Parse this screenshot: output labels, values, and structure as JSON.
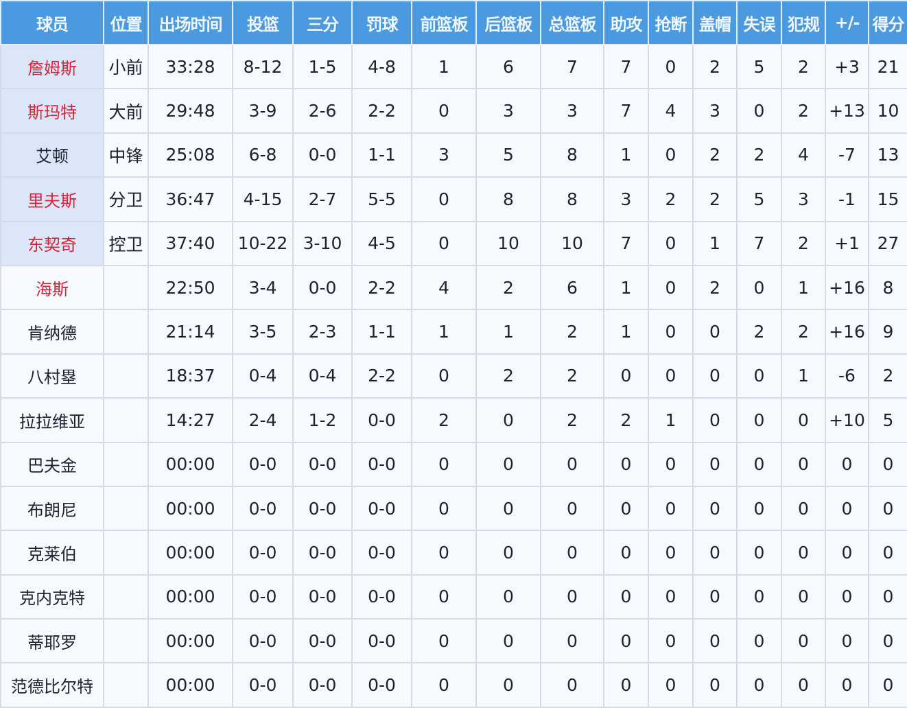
{
  "colors": {
    "header_bg": "#4b9ae0",
    "starter_bg": "#dbe7f8",
    "highlight_name": "#d7233a"
  },
  "headers": [
    "球员",
    "位置",
    "出场时间",
    "投篮",
    "三分",
    "罚球",
    "前篮板",
    "后篮板",
    "总篮板",
    "助攻",
    "抢断",
    "盖帽",
    "失误",
    "犯规",
    "+/-",
    "得分"
  ],
  "rows": [
    {
      "starter": true,
      "highlight": true,
      "cells": [
        "詹姆斯",
        "小前",
        "33:28",
        "8-12",
        "1-5",
        "4-8",
        "1",
        "6",
        "7",
        "7",
        "0",
        "2",
        "5",
        "2",
        "+3",
        "21"
      ]
    },
    {
      "starter": true,
      "highlight": true,
      "cells": [
        "斯玛特",
        "大前",
        "29:48",
        "3-9",
        "2-6",
        "2-2",
        "0",
        "3",
        "3",
        "7",
        "4",
        "3",
        "0",
        "2",
        "+13",
        "10"
      ]
    },
    {
      "starter": true,
      "highlight": false,
      "cells": [
        "艾顿",
        "中锋",
        "25:08",
        "6-8",
        "0-0",
        "1-1",
        "3",
        "5",
        "8",
        "1",
        "0",
        "2",
        "2",
        "4",
        "-7",
        "13"
      ]
    },
    {
      "starter": true,
      "highlight": true,
      "cells": [
        "里夫斯",
        "分卫",
        "36:47",
        "4-15",
        "2-7",
        "5-5",
        "0",
        "8",
        "8",
        "3",
        "2",
        "2",
        "5",
        "3",
        "-1",
        "15"
      ]
    },
    {
      "starter": true,
      "highlight": true,
      "cells": [
        "东契奇",
        "控卫",
        "37:40",
        "10-22",
        "3-10",
        "4-5",
        "0",
        "10",
        "10",
        "7",
        "0",
        "1",
        "7",
        "2",
        "+1",
        "27"
      ]
    },
    {
      "starter": false,
      "highlight": true,
      "cells": [
        "海斯",
        "",
        "22:50",
        "3-4",
        "0-0",
        "2-2",
        "4",
        "2",
        "6",
        "1",
        "0",
        "2",
        "0",
        "1",
        "+16",
        "8"
      ]
    },
    {
      "starter": false,
      "highlight": false,
      "cells": [
        "肯纳德",
        "",
        "21:14",
        "3-5",
        "2-3",
        "1-1",
        "1",
        "1",
        "2",
        "1",
        "0",
        "0",
        "2",
        "2",
        "+16",
        "9"
      ]
    },
    {
      "starter": false,
      "highlight": false,
      "cells": [
        "八村塁",
        "",
        "18:37",
        "0-4",
        "0-4",
        "2-2",
        "0",
        "2",
        "2",
        "0",
        "0",
        "0",
        "0",
        "1",
        "-6",
        "2"
      ]
    },
    {
      "starter": false,
      "highlight": false,
      "cells": [
        "拉拉维亚",
        "",
        "14:27",
        "2-4",
        "1-2",
        "0-0",
        "2",
        "0",
        "2",
        "2",
        "1",
        "0",
        "0",
        "0",
        "+10",
        "5"
      ]
    },
    {
      "starter": false,
      "highlight": false,
      "cells": [
        "巴夫金",
        "",
        "00:00",
        "0-0",
        "0-0",
        "0-0",
        "0",
        "0",
        "0",
        "0",
        "0",
        "0",
        "0",
        "0",
        "0",
        "0"
      ]
    },
    {
      "starter": false,
      "highlight": false,
      "cells": [
        "布朗尼",
        "",
        "00:00",
        "0-0",
        "0-0",
        "0-0",
        "0",
        "0",
        "0",
        "0",
        "0",
        "0",
        "0",
        "0",
        "0",
        "0"
      ]
    },
    {
      "starter": false,
      "highlight": false,
      "cells": [
        "克莱伯",
        "",
        "00:00",
        "0-0",
        "0-0",
        "0-0",
        "0",
        "0",
        "0",
        "0",
        "0",
        "0",
        "0",
        "0",
        "0",
        "0"
      ]
    },
    {
      "starter": false,
      "highlight": false,
      "cells": [
        "克内克特",
        "",
        "00:00",
        "0-0",
        "0-0",
        "0-0",
        "0",
        "0",
        "0",
        "0",
        "0",
        "0",
        "0",
        "0",
        "0",
        "0"
      ]
    },
    {
      "starter": false,
      "highlight": false,
      "cells": [
        "蒂耶罗",
        "",
        "00:00",
        "0-0",
        "0-0",
        "0-0",
        "0",
        "0",
        "0",
        "0",
        "0",
        "0",
        "0",
        "0",
        "0",
        "0"
      ]
    },
    {
      "starter": false,
      "highlight": false,
      "cells": [
        "范德比尔特",
        "",
        "00:00",
        "0-0",
        "0-0",
        "0-0",
        "0",
        "0",
        "0",
        "0",
        "0",
        "0",
        "0",
        "0",
        "0",
        "0"
      ]
    }
  ]
}
